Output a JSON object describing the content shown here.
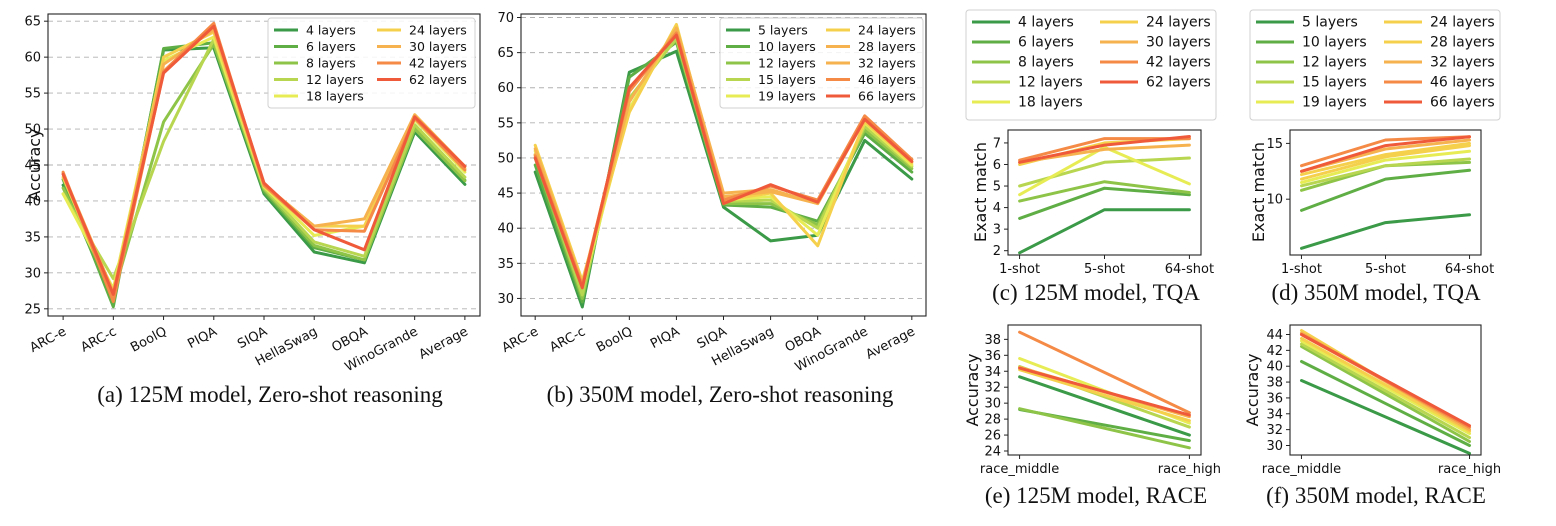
{
  "colors": {
    "c1": "#3a9a47",
    "c2": "#5fae45",
    "c3": "#8ec448",
    "c4": "#b8d650",
    "c5": "#e7ec55",
    "c6": "#f5d04c",
    "c7": "#f6b24e",
    "c8": "#f48a46",
    "c9": "#ef5a3a"
  },
  "chart_data": [
    {
      "id": "a",
      "type": "line",
      "caption": "(a) 125M model, Zero-shot reasoning",
      "xlabel": "",
      "ylabel": "Accuracy",
      "grid": true,
      "legend_position": "top-right",
      "ylim": [
        24,
        66
      ],
      "yticks": [
        25,
        30,
        35,
        40,
        45,
        50,
        55,
        60,
        65
      ],
      "categories": [
        "ARC-e",
        "ARC-c",
        "BoolQ",
        "PIQA",
        "SIQA",
        "HellaSwag",
        "OBQA",
        "WinoGrande",
        "Average"
      ],
      "series": [
        {
          "name": "4 layers",
          "color_key": "c1",
          "values": [
            42.2,
            26.0,
            61.0,
            61.3,
            41.0,
            32.9,
            31.4,
            49.6,
            42.3
          ]
        },
        {
          "name": "6 layers",
          "color_key": "c2",
          "values": [
            43.0,
            25.3,
            61.2,
            62.0,
            41.3,
            33.5,
            31.8,
            50.2,
            42.9
          ]
        },
        {
          "name": "8 layers",
          "color_key": "c3",
          "values": [
            41.8,
            27.0,
            51.0,
            61.8,
            41.6,
            33.8,
            31.8,
            50.0,
            42.8
          ]
        },
        {
          "name": "12 layers",
          "color_key": "c4",
          "values": [
            41.0,
            29.2,
            48.3,
            62.5,
            41.8,
            34.3,
            32.3,
            50.6,
            43.3
          ]
        },
        {
          "name": "18 layers",
          "color_key": "c5",
          "values": [
            41.0,
            27.8,
            59.5,
            62.8,
            42.0,
            35.2,
            36.5,
            51.3,
            44.0
          ]
        },
        {
          "name": "24 layers",
          "color_key": "c6",
          "values": [
            43.3,
            26.8,
            60.0,
            63.5,
            42.1,
            36.5,
            36.5,
            51.5,
            44.5
          ]
        },
        {
          "name": "30 layers",
          "color_key": "c7",
          "values": [
            43.8,
            27.3,
            59.0,
            63.8,
            42.3,
            36.5,
            37.5,
            52.0,
            44.8
          ]
        },
        {
          "name": "42 layers",
          "color_key": "c8",
          "values": [
            44.0,
            26.0,
            58.0,
            64.7,
            42.2,
            36.0,
            35.8,
            51.5,
            44.3
          ]
        },
        {
          "name": "62 layers",
          "color_key": "c9",
          "values": [
            43.7,
            27.0,
            57.8,
            64.3,
            42.5,
            36.0,
            33.2,
            51.7,
            44.8
          ]
        }
      ]
    },
    {
      "id": "b",
      "type": "line",
      "caption": "(b) 350M model, Zero-shot reasoning",
      "xlabel": "",
      "ylabel": "",
      "grid": true,
      "legend_position": "top-right",
      "ylim": [
        27.5,
        70.5
      ],
      "yticks": [
        30,
        35,
        40,
        45,
        50,
        55,
        60,
        65,
        70
      ],
      "categories": [
        "ARC-e",
        "ARC-c",
        "BoolQ",
        "PIQA",
        "SIQA",
        "HellaSwag",
        "OBQA",
        "WinoGrande",
        "Average"
      ],
      "series": [
        {
          "name": "5 layers",
          "color_key": "c1",
          "values": [
            48.0,
            28.8,
            62.2,
            65.2,
            43.0,
            38.2,
            39.0,
            52.5,
            47.0
          ]
        },
        {
          "name": "10 layers",
          "color_key": "c2",
          "values": [
            49.0,
            29.5,
            61.5,
            66.5,
            43.3,
            43.0,
            41.0,
            53.5,
            48.0
          ]
        },
        {
          "name": "12 layers",
          "color_key": "c3",
          "values": [
            50.0,
            30.0,
            60.0,
            66.8,
            43.5,
            43.5,
            40.5,
            54.0,
            48.5
          ]
        },
        {
          "name": "15 layers",
          "color_key": "c4",
          "values": [
            50.5,
            30.5,
            58.5,
            67.0,
            43.8,
            44.0,
            40.0,
            54.5,
            48.8
          ]
        },
        {
          "name": "19 layers",
          "color_key": "c5",
          "values": [
            51.0,
            31.5,
            57.0,
            68.5,
            44.0,
            44.5,
            39.0,
            55.0,
            49.0
          ]
        },
        {
          "name": "24 layers",
          "color_key": "c6",
          "values": [
            51.8,
            32.5,
            56.5,
            69.0,
            44.0,
            45.0,
            37.5,
            55.2,
            49.3
          ]
        },
        {
          "name": "28 layers",
          "color_key": "c7",
          "values": [
            51.3,
            32.0,
            58.0,
            68.5,
            45.0,
            45.5,
            43.5,
            55.5,
            49.8
          ]
        },
        {
          "name": "32 layers",
          "color_key": "c7",
          "values": [
            50.5,
            32.0,
            59.5,
            68.0,
            44.5,
            45.2,
            43.5,
            55.8,
            49.5
          ]
        },
        {
          "name": "46 layers",
          "color_key": "c8",
          "values": [
            50.3,
            31.8,
            59.5,
            67.8,
            44.0,
            46.0,
            44.0,
            56.0,
            49.8
          ]
        },
        {
          "name": "66 layers",
          "color_key": "c9",
          "values": [
            50.0,
            31.5,
            60.0,
            67.5,
            43.5,
            46.2,
            43.7,
            55.5,
            49.5
          ]
        }
      ]
    },
    {
      "id": "c",
      "type": "line",
      "caption": "(c) 125M model, TQA",
      "xlabel": "",
      "ylabel": "Exact match",
      "grid": false,
      "legend_position": "above",
      "ylim": [
        1.8,
        7.6
      ],
      "yticks": [
        2,
        3,
        4,
        5,
        6,
        7
      ],
      "categories": [
        "1-shot",
        "5-shot",
        "64-shot"
      ],
      "series": [
        {
          "name": "4 layers",
          "color_key": "c1",
          "values": [
            1.9,
            3.9,
            3.9
          ]
        },
        {
          "name": "6 layers",
          "color_key": "c2",
          "values": [
            3.5,
            4.9,
            4.6
          ]
        },
        {
          "name": "8 layers",
          "color_key": "c3",
          "values": [
            4.3,
            5.2,
            4.7
          ]
        },
        {
          "name": "12 layers",
          "color_key": "c4",
          "values": [
            5.0,
            6.1,
            6.3
          ]
        },
        {
          "name": "18 layers",
          "color_key": "c5",
          "values": [
            4.6,
            6.8,
            5.1
          ]
        },
        {
          "name": "24 layers",
          "color_key": "c6",
          "values": [
            6.0,
            7.0,
            7.2
          ]
        },
        {
          "name": "30 layers",
          "color_key": "c7",
          "values": [
            6.1,
            6.7,
            6.9
          ]
        },
        {
          "name": "42 layers",
          "color_key": "c8",
          "values": [
            6.2,
            7.2,
            7.2
          ]
        },
        {
          "name": "62 layers",
          "color_key": "c9",
          "values": [
            6.1,
            6.9,
            7.3
          ]
        }
      ]
    },
    {
      "id": "d",
      "type": "line",
      "caption": "(d) 350M model, TQA",
      "xlabel": "",
      "ylabel": "Exact match",
      "grid": false,
      "legend_position": "above",
      "ylim": [
        5.0,
        16.2
      ],
      "yticks": [
        10,
        15
      ],
      "categories": [
        "1-shot",
        "5-shot",
        "64-shot"
      ],
      "series": [
        {
          "name": "5 layers",
          "color_key": "c1",
          "values": [
            5.6,
            7.9,
            8.6
          ]
        },
        {
          "name": "10 layers",
          "color_key": "c2",
          "values": [
            9.0,
            11.8,
            12.6
          ]
        },
        {
          "name": "12 layers",
          "color_key": "c3",
          "values": [
            10.8,
            13.0,
            13.3
          ]
        },
        {
          "name": "15 layers",
          "color_key": "c4",
          "values": [
            11.2,
            13.0,
            13.6
          ]
        },
        {
          "name": "19 layers",
          "color_key": "c5",
          "values": [
            11.5,
            13.5,
            14.3
          ]
        },
        {
          "name": "24 layers",
          "color_key": "c6",
          "values": [
            11.8,
            13.8,
            14.8
          ]
        },
        {
          "name": "28 layers",
          "color_key": "c6",
          "values": [
            12.2,
            14.0,
            15.0
          ]
        },
        {
          "name": "32 layers",
          "color_key": "c7",
          "values": [
            12.5,
            14.5,
            15.3
          ]
        },
        {
          "name": "46 layers",
          "color_key": "c8",
          "values": [
            13.0,
            15.3,
            15.6
          ]
        },
        {
          "name": "66 layers",
          "color_key": "c9",
          "values": [
            12.5,
            14.8,
            15.6
          ]
        }
      ]
    },
    {
      "id": "e",
      "type": "line",
      "caption": "(e) 125M model, RACE",
      "xlabel": "",
      "ylabel": "Accuracy",
      "grid": false,
      "legend_position": "none",
      "ylim": [
        23.5,
        39.8
      ],
      "yticks": [
        24,
        26,
        28,
        30,
        32,
        34,
        36,
        38
      ],
      "categories": [
        "race_middle",
        "race_high"
      ],
      "series": [
        {
          "name": "4 layers",
          "color_key": "c1",
          "values": [
            33.3,
            26.0
          ]
        },
        {
          "name": "6 layers",
          "color_key": "c2",
          "values": [
            29.2,
            25.3
          ]
        },
        {
          "name": "8 layers",
          "color_key": "c3",
          "values": [
            29.3,
            24.4
          ]
        },
        {
          "name": "12 layers",
          "color_key": "c4",
          "values": [
            34.6,
            27.0
          ]
        },
        {
          "name": "18 layers",
          "color_key": "c5",
          "values": [
            35.6,
            27.5
          ]
        },
        {
          "name": "24 layers",
          "color_key": "c6",
          "values": [
            34.2,
            27.8
          ]
        },
        {
          "name": "30 layers",
          "color_key": "c7",
          "values": [
            34.5,
            28.3
          ]
        },
        {
          "name": "42 layers",
          "color_key": "c8",
          "values": [
            38.9,
            28.8
          ]
        },
        {
          "name": "62 layers",
          "color_key": "c9",
          "values": [
            34.4,
            28.5
          ]
        }
      ]
    },
    {
      "id": "f",
      "type": "line",
      "caption": "(f) 350M model, RACE",
      "xlabel": "",
      "ylabel": "Accuracy",
      "grid": false,
      "legend_position": "none",
      "ylim": [
        28.8,
        45.2
      ],
      "yticks": [
        30,
        32,
        34,
        36,
        38,
        40,
        42,
        44
      ],
      "categories": [
        "race_middle",
        "race_high"
      ],
      "series": [
        {
          "name": "5 layers",
          "color_key": "c1",
          "values": [
            38.2,
            29.0
          ]
        },
        {
          "name": "10 layers",
          "color_key": "c2",
          "values": [
            40.6,
            30.0
          ]
        },
        {
          "name": "12 layers",
          "color_key": "c3",
          "values": [
            42.5,
            30.5
          ]
        },
        {
          "name": "15 layers",
          "color_key": "c4",
          "values": [
            42.8,
            31.0
          ]
        },
        {
          "name": "19 layers",
          "color_key": "c5",
          "values": [
            43.2,
            31.5
          ]
        },
        {
          "name": "24 layers",
          "color_key": "c6",
          "values": [
            43.5,
            31.8
          ]
        },
        {
          "name": "28 layers",
          "color_key": "c6",
          "values": [
            44.5,
            31.8
          ]
        },
        {
          "name": "32 layers",
          "color_key": "c7",
          "values": [
            44.2,
            32.0
          ]
        },
        {
          "name": "46 layers",
          "color_key": "c8",
          "values": [
            44.0,
            32.3
          ]
        },
        {
          "name": "66 layers",
          "color_key": "c9",
          "values": [
            44.0,
            32.5
          ]
        }
      ]
    }
  ]
}
